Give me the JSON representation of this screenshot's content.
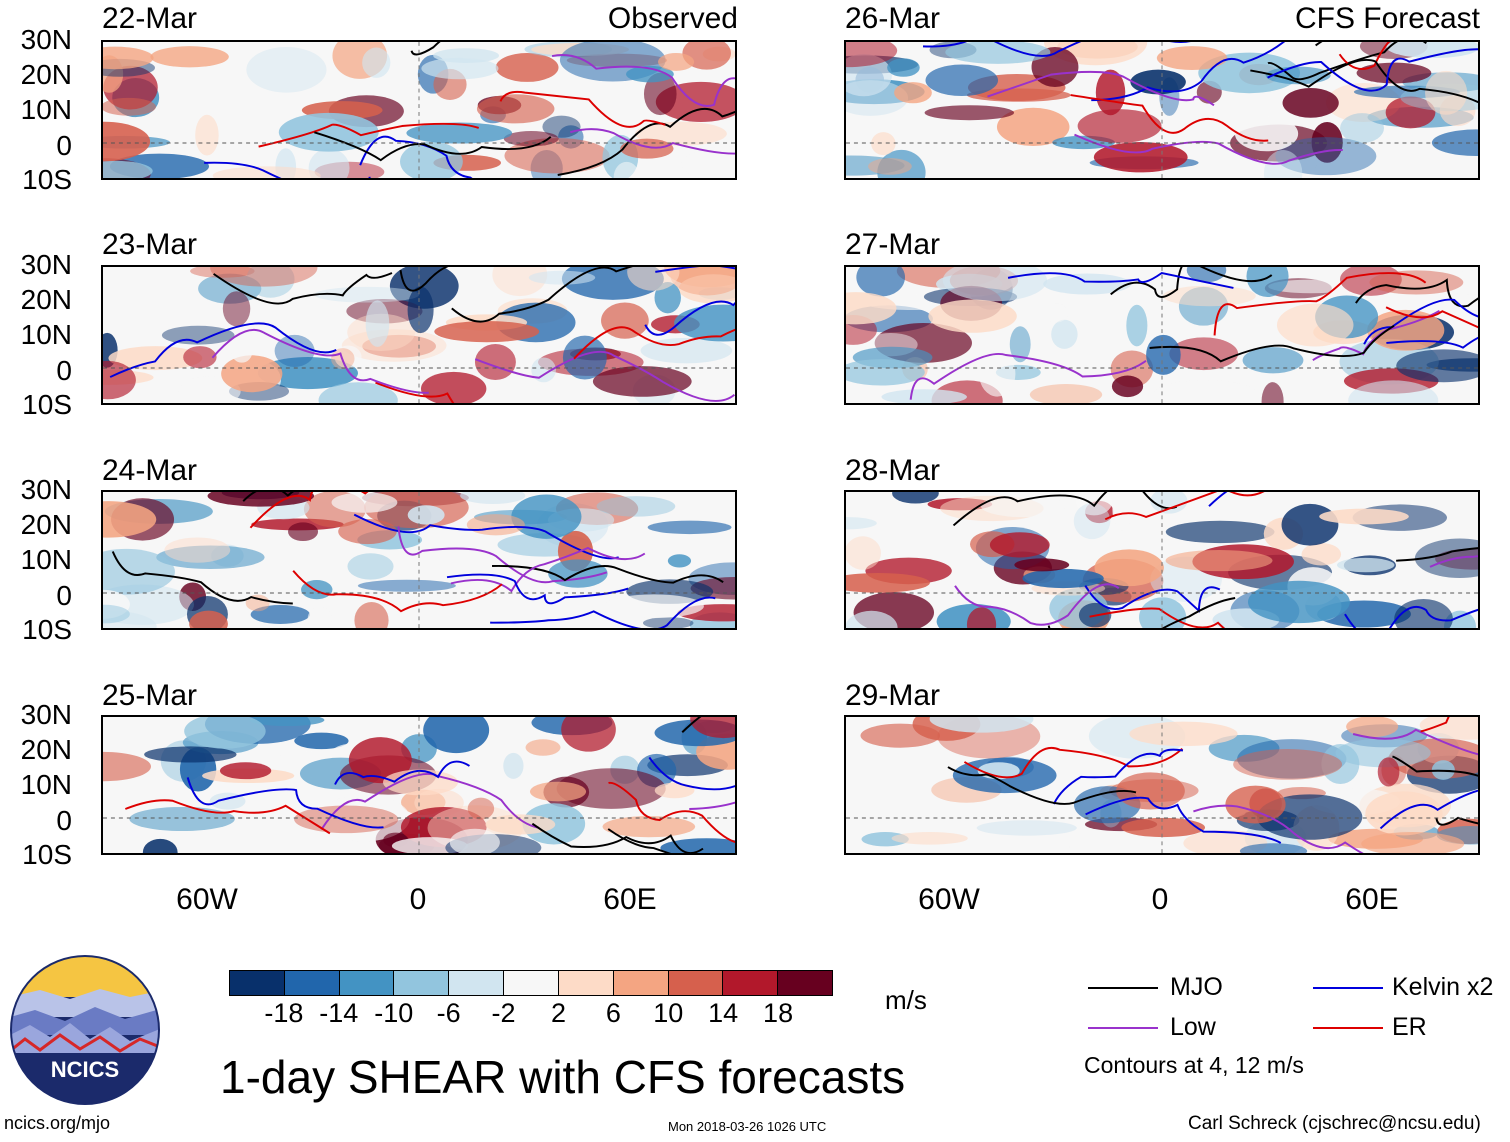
{
  "panels_left": [
    {
      "date": "22-Mar",
      "label": "Observed"
    },
    {
      "date": "23-Mar",
      "label": ""
    },
    {
      "date": "24-Mar",
      "label": ""
    },
    {
      "date": "25-Mar",
      "label": ""
    }
  ],
  "panels_right": [
    {
      "date": "26-Mar",
      "label": "CFS Forecast"
    },
    {
      "date": "27-Mar",
      "label": ""
    },
    {
      "date": "28-Mar",
      "label": ""
    },
    {
      "date": "29-Mar",
      "label": ""
    }
  ],
  "lat_labels": [
    "30N",
    "20N",
    "10N",
    "0",
    "10S"
  ],
  "lon_labels": [
    "60W",
    "0",
    "60E"
  ],
  "colorbar": {
    "colors": [
      "#08306b",
      "#2166ac",
      "#4393c3",
      "#92c5de",
      "#d1e5f0",
      "#f7f7f7",
      "#fddbc7",
      "#f4a582",
      "#d6604d",
      "#b2182b",
      "#67001f"
    ],
    "ticks": [
      "-18",
      "-14",
      "-10",
      "-6",
      "-2",
      "2",
      "6",
      "10",
      "14",
      "18"
    ],
    "units": "m/s"
  },
  "title": "1-day SHEAR with CFS forecasts",
  "legend": {
    "items": [
      {
        "label": "MJO",
        "color": "#000000"
      },
      {
        "label": "Kelvin x2",
        "color": "#0000dd"
      },
      {
        "label": "Low",
        "color": "#9932cc"
      },
      {
        "label": "ER",
        "color": "#dd0000"
      }
    ],
    "note": "Contours at 4, 12 m/s"
  },
  "logo": {
    "text": "NCICS"
  },
  "footer": {
    "url": "ncics.org/mjo",
    "timestamp": "Mon 2018-03-26 1026 UTC",
    "credit": "Carl Schreck (cjschrec@ncsu.edu)"
  }
}
